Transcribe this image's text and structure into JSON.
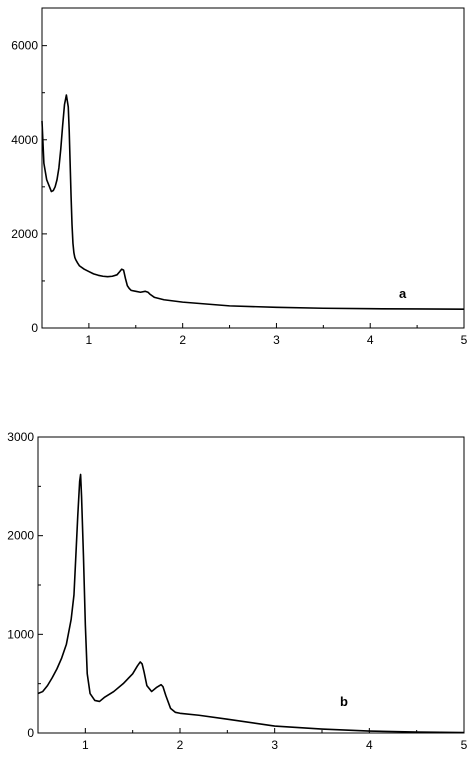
{
  "chart_data": [
    {
      "type": "line",
      "panel_label": "a",
      "title": "",
      "xlabel": "",
      "ylabel": "",
      "xlim": [
        0.5,
        5
      ],
      "ylim": [
        0,
        6800
      ],
      "x_ticks": [
        1,
        2,
        3,
        4,
        5
      ],
      "y_ticks": [
        0,
        2000,
        4000,
        6000
      ],
      "grid": false,
      "colors": {
        "line": "#000000",
        "axis": "#000000"
      },
      "series": [
        {
          "x": [
            0.5,
            0.52,
            0.55,
            0.58,
            0.6,
            0.62,
            0.64,
            0.66,
            0.68,
            0.7,
            0.72,
            0.74,
            0.76,
            0.78,
            0.79,
            0.8,
            0.81,
            0.82,
            0.83,
            0.84,
            0.85,
            0.86,
            0.88,
            0.9,
            0.95,
            1.0,
            1.05,
            1.1,
            1.15,
            1.2,
            1.25,
            1.3,
            1.33,
            1.35,
            1.37,
            1.39,
            1.41,
            1.43,
            1.45,
            1.5,
            1.55,
            1.6,
            1.63,
            1.65,
            1.7,
            1.8,
            2.0,
            2.5,
            3.0,
            3.5,
            4.0,
            4.5,
            5.0
          ],
          "y": [
            4400,
            3500,
            3150,
            3000,
            2900,
            2920,
            3000,
            3150,
            3400,
            3800,
            4300,
            4750,
            4950,
            4700,
            4200,
            3500,
            2800,
            2200,
            1800,
            1600,
            1500,
            1450,
            1380,
            1320,
            1250,
            1200,
            1150,
            1120,
            1100,
            1090,
            1100,
            1130,
            1200,
            1250,
            1230,
            1050,
            900,
            840,
            800,
            780,
            760,
            780,
            760,
            720,
            650,
            600,
            550,
            470,
            440,
            420,
            410,
            405,
            400
          ]
        }
      ]
    },
    {
      "type": "line",
      "panel_label": "b",
      "title": "",
      "xlabel": "",
      "ylabel": "",
      "xlim": [
        0.5,
        5
      ],
      "ylim": [
        0,
        3000
      ],
      "x_ticks": [
        1,
        2,
        3,
        4,
        5
      ],
      "y_ticks": [
        0,
        1000,
        2000,
        3000
      ],
      "grid": false,
      "colors": {
        "line": "#000000",
        "axis": "#000000"
      },
      "series": [
        {
          "x": [
            0.5,
            0.55,
            0.6,
            0.65,
            0.7,
            0.75,
            0.8,
            0.85,
            0.88,
            0.9,
            0.92,
            0.94,
            0.95,
            0.96,
            0.98,
            1.0,
            1.02,
            1.05,
            1.1,
            1.15,
            1.2,
            1.3,
            1.4,
            1.5,
            1.55,
            1.58,
            1.6,
            1.62,
            1.65,
            1.7,
            1.75,
            1.8,
            1.82,
            1.85,
            1.9,
            1.95,
            2.0,
            2.2,
            2.5,
            3.0,
            3.5,
            4.0,
            4.5,
            5.0
          ],
          "y": [
            400,
            420,
            480,
            560,
            650,
            760,
            900,
            1150,
            1400,
            1800,
            2200,
            2550,
            2620,
            2400,
            1800,
            1100,
            600,
            400,
            330,
            320,
            360,
            420,
            500,
            600,
            680,
            720,
            700,
            620,
            480,
            420,
            460,
            490,
            470,
            380,
            250,
            210,
            200,
            180,
            140,
            70,
            40,
            20,
            10,
            5
          ]
        }
      ]
    }
  ]
}
